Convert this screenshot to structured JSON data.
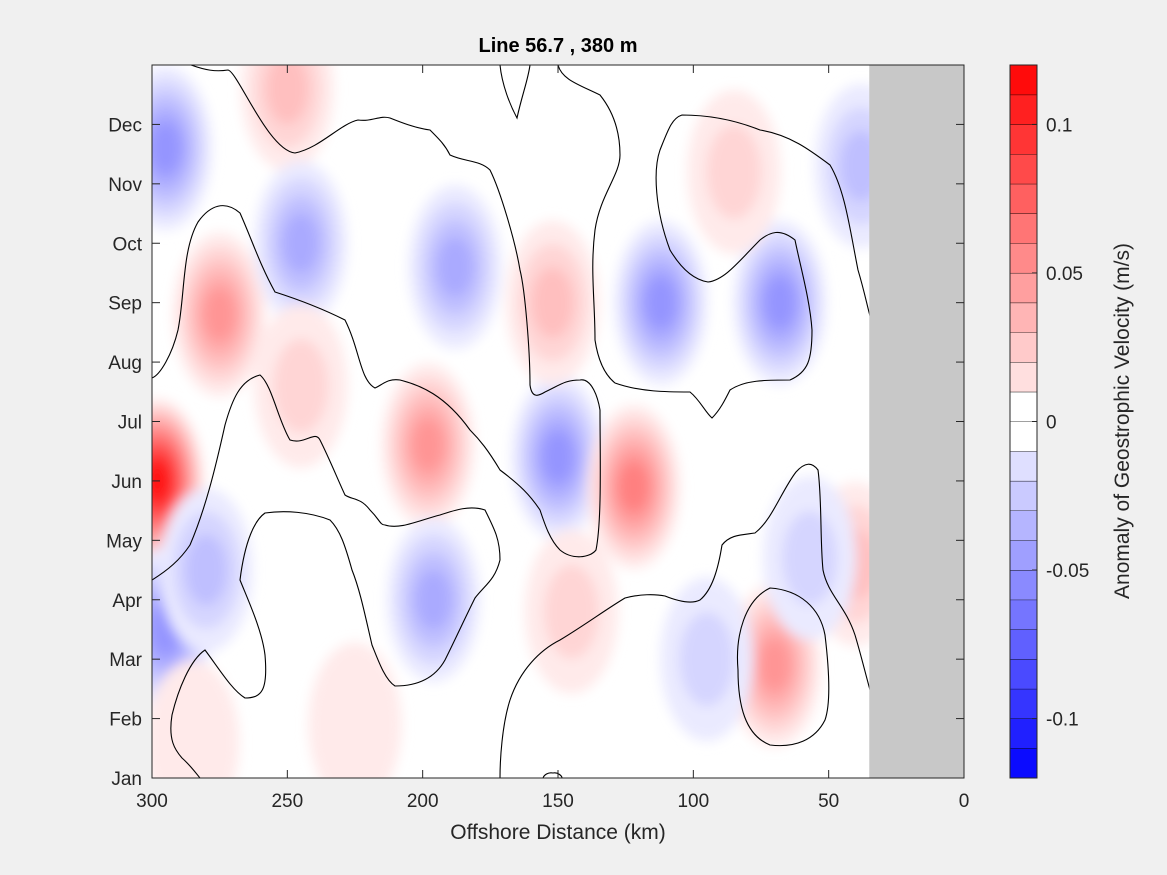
{
  "figure": {
    "background": "#f0f0f0"
  },
  "chart_data": {
    "type": "heatmap",
    "title": "Line 56.7 , 380 m",
    "xlabel": "Offshore Distance (km)",
    "ylabel": "",
    "x_reversed": true,
    "xlim": [
      300,
      0
    ],
    "x_ticks": [
      300,
      250,
      200,
      150,
      100,
      50,
      0
    ],
    "y_ticks": [
      "Jan",
      "Feb",
      "Mar",
      "Apr",
      "May",
      "Jun",
      "Jul",
      "Aug",
      "Sep",
      "Oct",
      "Nov",
      "Dec"
    ],
    "ylim": [
      1,
      13
    ],
    "grid": false,
    "no_data_region": {
      "x_from": 35,
      "x_to": 0,
      "color": "#c8c8c8"
    },
    "zero_contour_color": "#000000",
    "colorbar": {
      "label": "Anomaly of Geostrophic Velocity (m/s)",
      "location": "right",
      "clim": [
        -0.12,
        0.12
      ],
      "ticks": [
        "0.1",
        "0.05",
        "0",
        "-0.05",
        "-0.1"
      ],
      "tick_values": [
        0.1,
        0.05,
        0,
        -0.05,
        -0.1
      ],
      "levels": 24,
      "negative_color": "#0000ff",
      "positive_color": "#ff0000",
      "zero_color": "#ffffff"
    },
    "anomaly_features": [
      {
        "x": 298,
        "month": 6.0,
        "value": 0.11
      },
      {
        "x": 275,
        "month": 8.8,
        "value": 0.045
      },
      {
        "x": 295,
        "month": 11.6,
        "value": -0.05
      },
      {
        "x": 295,
        "month": 3.5,
        "value": -0.045
      },
      {
        "x": 280,
        "month": 4.5,
        "value": -0.03
      },
      {
        "x": 250,
        "month": 12.6,
        "value": 0.025
      },
      {
        "x": 245,
        "month": 10.0,
        "value": -0.04
      },
      {
        "x": 245,
        "month": 7.6,
        "value": 0.015
      },
      {
        "x": 198,
        "month": 6.6,
        "value": 0.05
      },
      {
        "x": 188,
        "month": 9.6,
        "value": -0.04
      },
      {
        "x": 196,
        "month": 4.0,
        "value": -0.04
      },
      {
        "x": 150,
        "month": 6.4,
        "value": -0.05
      },
      {
        "x": 122,
        "month": 5.9,
        "value": 0.06
      },
      {
        "x": 152,
        "month": 9.0,
        "value": 0.025
      },
      {
        "x": 145,
        "month": 3.8,
        "value": 0.02
      },
      {
        "x": 112,
        "month": 9.0,
        "value": -0.045
      },
      {
        "x": 68,
        "month": 9.0,
        "value": -0.045
      },
      {
        "x": 70,
        "month": 2.9,
        "value": 0.045
      },
      {
        "x": 85,
        "month": 11.2,
        "value": 0.02
      },
      {
        "x": 38,
        "month": 11.3,
        "value": -0.025
      },
      {
        "x": 40,
        "month": 4.6,
        "value": 0.025
      },
      {
        "x": 57,
        "month": 4.7,
        "value": -0.015
      },
      {
        "x": 95,
        "month": 3.0,
        "value": -0.015
      },
      {
        "x": 285,
        "month": 1.6,
        "value": 0.012
      },
      {
        "x": 225,
        "month": 1.9,
        "value": 0.012
      }
    ]
  }
}
